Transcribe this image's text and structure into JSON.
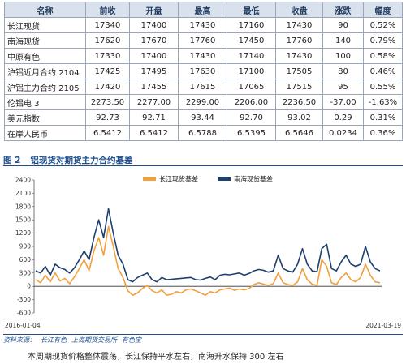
{
  "table": {
    "headers": [
      "名称",
      "前收",
      "开盘",
      "最高",
      "最低",
      "收盘",
      "涨跌",
      "幅度"
    ],
    "rows": [
      [
        "长江现货",
        "17340",
        "17400",
        "17430",
        "17160",
        "17430",
        "90",
        "0.52%"
      ],
      [
        "南海现货",
        "17620",
        "17670",
        "17760",
        "17450",
        "17760",
        "140",
        "0.79%"
      ],
      [
        "中原有色",
        "17330",
        "17400",
        "17430",
        "17140",
        "17430",
        "100",
        "0.58%"
      ],
      [
        "沪铝近月合约 2104",
        "17425",
        "17495",
        "17630",
        "17100",
        "17505",
        "80",
        "0.46%"
      ],
      [
        "沪铝主力合约 2105",
        "17420",
        "17455",
        "17615",
        "17065",
        "17515",
        "95",
        "0.55%"
      ],
      [
        "伦铝电 3",
        "2273.50",
        "2277.00",
        "2299.00",
        "2206.00",
        "2236.50",
        "-37.00",
        "-1.63%"
      ],
      [
        "美元指数",
        "92.73",
        "92.71",
        "93.44",
        "92.70",
        "93.02",
        "0.29",
        "0.31%"
      ],
      [
        "在岸人民币",
        "6.5412",
        "6.5412",
        "6.5788",
        "6.5395",
        "6.5646",
        "0.0234",
        "0.36%"
      ]
    ]
  },
  "figure": {
    "number": "图 2",
    "title": "铝现货对期货主力合约基差"
  },
  "chart_data": {
    "type": "line",
    "title": "",
    "xlabel": "",
    "ylabel": "",
    "ylim": [
      -600,
      2400
    ],
    "yticks": [
      -600,
      -300,
      0,
      300,
      600,
      900,
      1200,
      1500,
      1800,
      2100,
      2400
    ],
    "ytick_labels": [
      "-600",
      "-300",
      "0",
      "300",
      "600",
      "900",
      "1200",
      "1500",
      "1800",
      "2100",
      "2400"
    ],
    "x_start": "2016-01-04",
    "x_end": "2021-03-19",
    "xtick_labels": [
      "2016-01-04",
      "2021-03-19"
    ],
    "grid": false,
    "legend": "top-center",
    "series": [
      {
        "name": "长江现货基差",
        "color": "#f2a03d",
        "values": [
          150,
          80,
          250,
          100,
          300,
          120,
          180,
          60,
          220,
          400,
          600,
          350,
          800,
          1100,
          700,
          1350,
          900,
          400,
          200,
          -100,
          -200,
          -150,
          -50,
          20,
          -100,
          -150,
          -80,
          -200,
          -180,
          -120,
          -150,
          -80,
          -60,
          -100,
          -150,
          -200,
          -120,
          -150,
          -80,
          -60,
          -40,
          -90,
          -60,
          -80,
          -50,
          40,
          80,
          50,
          20,
          60,
          300,
          80,
          40,
          20,
          100,
          400,
          150,
          50,
          20,
          600,
          450,
          80,
          40,
          200,
          300,
          150,
          100,
          200,
          500,
          250,
          100,
          80
        ]
      },
      {
        "name": "南海现货基差",
        "color": "#1f3f6e",
        "values": [
          350,
          300,
          450,
          250,
          500,
          420,
          380,
          300,
          420,
          600,
          800,
          600,
          1100,
          1500,
          1100,
          1750,
          1200,
          700,
          500,
          150,
          100,
          200,
          250,
          300,
          150,
          100,
          200,
          150,
          160,
          170,
          180,
          190,
          200,
          150,
          140,
          180,
          210,
          150,
          250,
          270,
          260,
          280,
          300,
          250,
          290,
          350,
          380,
          360,
          320,
          350,
          700,
          400,
          350,
          320,
          500,
          850,
          500,
          350,
          330,
          850,
          950,
          400,
          350,
          550,
          700,
          500,
          450,
          500,
          900,
          550,
          400,
          350
        ]
      }
    ]
  },
  "source": {
    "label": "资料来源：",
    "items": [
      "长江有色",
      "上海期货交易所",
      "有色宝"
    ]
  },
  "caption": "本周期现货价格整体震荡，长江保持平水左右，南海升水保持 300 左右"
}
